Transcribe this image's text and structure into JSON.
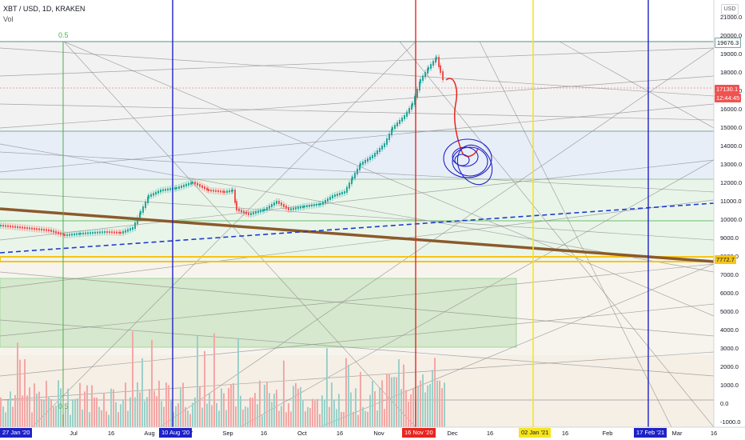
{
  "legend": {
    "symbol": "XBT / USD, 1D, KRAKEN",
    "volume": "Vol"
  },
  "currency_button": "USD",
  "fib_labels": {
    "top": "0.5",
    "bottom": "0.5"
  },
  "price_axis_ticks": [
    "21000.0",
    "20000.0",
    "19000.0",
    "18000.0",
    "17000.0",
    "16000.0",
    "15000.0",
    "14000.0",
    "13000.0",
    "12000.0",
    "11000.0",
    "10000.0",
    "9000.0",
    "8000.0",
    "7000.0",
    "6000.0",
    "5000.0",
    "4000.0",
    "3000.0",
    "2000.0",
    "1000.0",
    "0.0",
    "-1000.0"
  ],
  "price_tags": {
    "high_line": "19676.3",
    "last_price": "17130.1",
    "countdown": "12:44:45",
    "support": "7772.7"
  },
  "time_axis_ticks": [
    "Jul",
    "16",
    "Aug",
    "17",
    "Sep",
    "16",
    "Oct",
    "16",
    "Nov",
    "Dec",
    "16",
    "16",
    "Feb",
    "Mar",
    "16"
  ],
  "date_tags": {
    "start": "27 Jan '20",
    "blue_1": "10 Aug '20",
    "red": "16 Nov '20",
    "yellow": "02 Jan '21",
    "blue_2": "17 Feb '21"
  },
  "colors": {
    "blue_vline": "#1e22c6",
    "red_vline": "#e8261e",
    "yellow_vline": "#f5e51b",
    "up_candle": "#26a69a",
    "down_candle": "#ef5350",
    "trend_brown": "#8b5a2b",
    "support_yellow": "#f5c518",
    "fib_green": "#4caf50"
  }
}
